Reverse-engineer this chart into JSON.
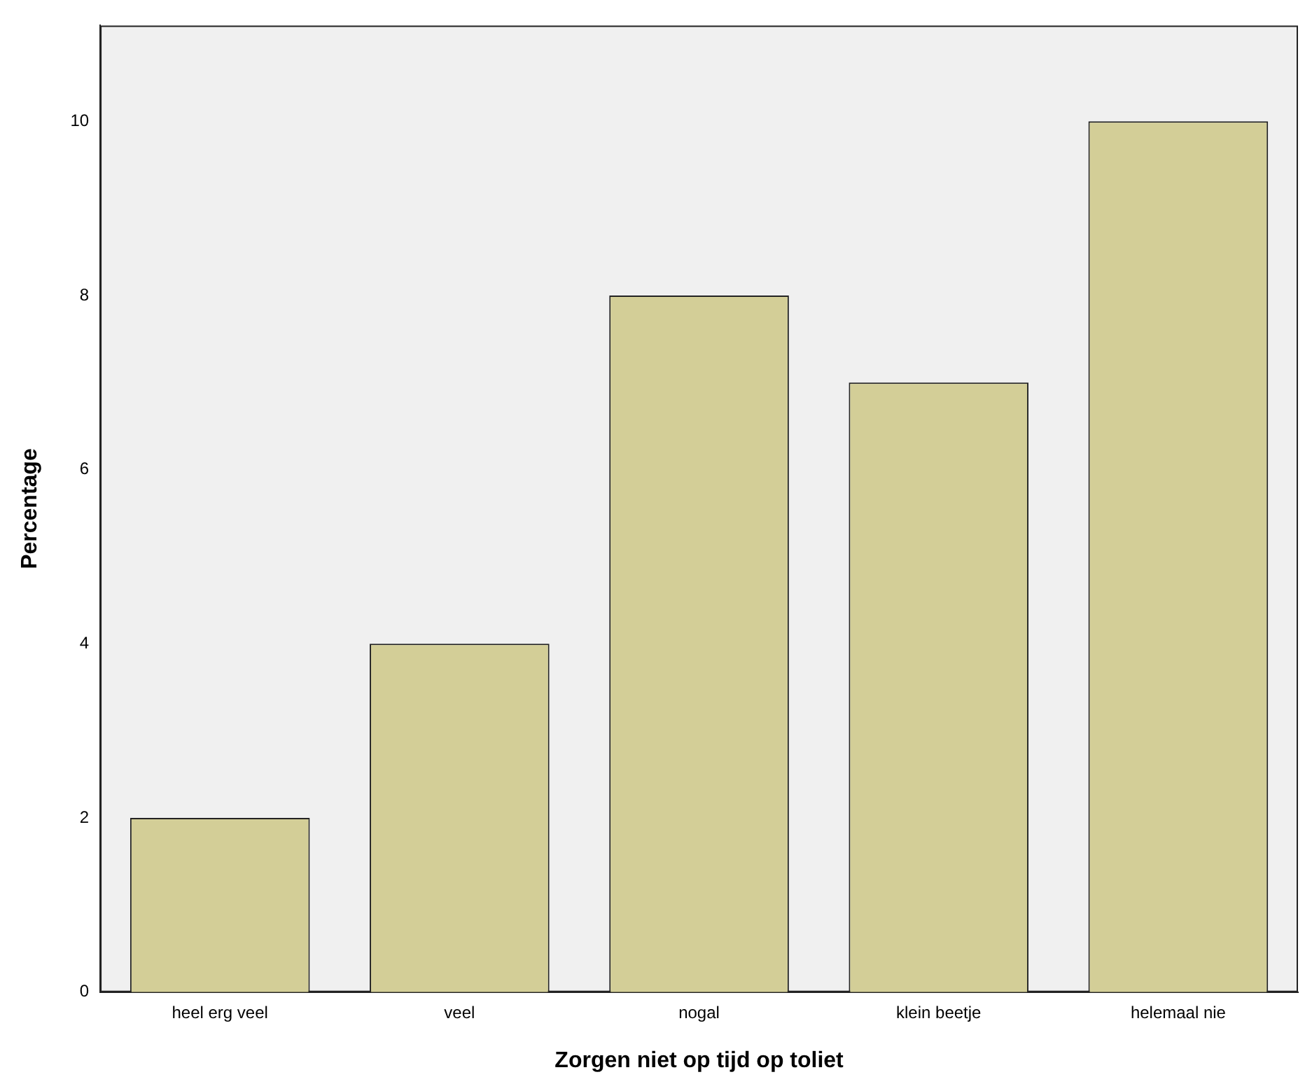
{
  "chart_data": {
    "type": "bar",
    "xlabel": "Zorgen niet op tijd op toliet",
    "ylabel": "Percentage",
    "categories": [
      "heel erg veel",
      "veel",
      "nogal",
      "klein beetje",
      "helemaal nie"
    ],
    "values": [
      2,
      4,
      8,
      7,
      10
    ],
    "color": "#d3ce97",
    "ylim": [
      0,
      11.1
    ],
    "yticks": [
      0,
      2,
      4,
      6,
      8,
      10
    ],
    "grid": false,
    "legend": false
  }
}
